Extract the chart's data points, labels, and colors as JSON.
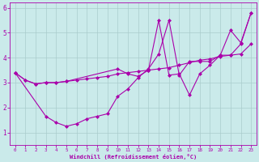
{
  "bg_color": "#caeaea",
  "line_color": "#aa00aa",
  "grid_color": "#aacccc",
  "xlabel": "Windchill (Refroidissement éolien,°C)",
  "xlabel_color": "#aa00aa",
  "tick_color": "#aa00aa",
  "xlim": [
    -0.5,
    23.5
  ],
  "ylim": [
    0.5,
    6.2
  ],
  "yticks": [
    1,
    2,
    3,
    4,
    5,
    6
  ],
  "xticks": [
    0,
    1,
    2,
    3,
    4,
    5,
    6,
    7,
    8,
    9,
    10,
    11,
    12,
    13,
    14,
    15,
    16,
    17,
    18,
    19,
    20,
    21,
    22,
    23
  ],
  "line1_x": [
    0,
    1,
    2,
    3,
    4,
    5,
    6,
    7,
    8,
    9,
    10,
    11,
    12,
    13,
    14,
    15,
    16,
    17,
    18,
    19,
    20,
    21,
    22,
    23
  ],
  "line1_y": [
    3.4,
    3.1,
    2.95,
    3.0,
    3.0,
    3.05,
    3.1,
    3.15,
    3.2,
    3.25,
    3.35,
    3.4,
    3.45,
    3.5,
    3.55,
    3.6,
    3.7,
    3.8,
    3.9,
    3.95,
    4.05,
    4.1,
    4.15,
    4.55
  ],
  "line2_x": [
    0,
    3,
    4,
    5,
    6,
    7,
    8,
    9,
    10,
    11,
    12,
    13,
    14,
    15,
    16,
    17,
    18,
    19,
    20,
    21,
    22,
    23
  ],
  "line2_y": [
    3.4,
    1.65,
    1.4,
    1.25,
    1.35,
    1.55,
    1.65,
    1.75,
    2.45,
    2.75,
    3.2,
    3.55,
    4.15,
    5.5,
    3.3,
    3.85,
    3.85,
    3.85,
    4.1,
    4.1,
    4.55,
    5.8
  ],
  "line3_x": [
    0,
    1,
    2,
    3,
    4,
    5,
    10,
    11,
    12,
    13,
    14,
    15,
    16,
    17,
    18,
    19,
    20,
    21,
    22,
    23
  ],
  "line3_y": [
    3.4,
    3.1,
    2.95,
    3.0,
    3.0,
    3.05,
    3.55,
    3.35,
    3.25,
    3.5,
    5.5,
    3.3,
    3.35,
    2.5,
    3.35,
    3.7,
    4.1,
    5.1,
    4.6,
    5.8
  ]
}
